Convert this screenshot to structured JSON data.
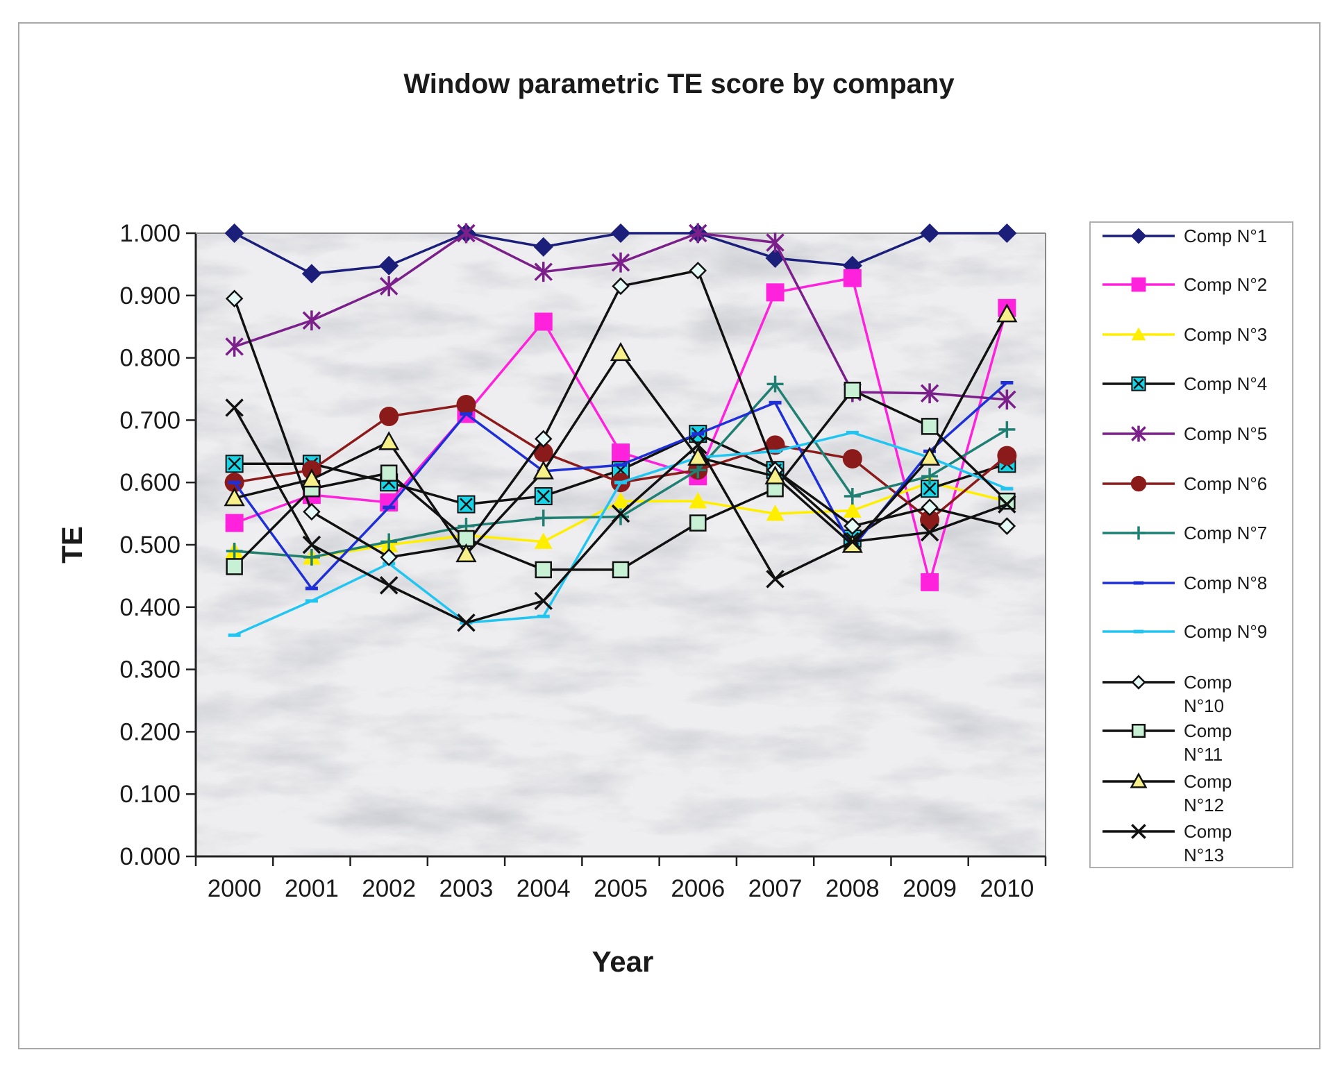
{
  "chart_data": {
    "type": "line",
    "title": "Window parametric TE score by company",
    "xlabel": "Year",
    "ylabel": "TE",
    "x": [
      "2000",
      "2001",
      "2002",
      "2003",
      "2004",
      "2005",
      "2006",
      "2007",
      "2008",
      "2009",
      "2010"
    ],
    "ylim": [
      0,
      1
    ],
    "yticks": [
      "0.000",
      "0.100",
      "0.200",
      "0.300",
      "0.400",
      "0.500",
      "0.600",
      "0.700",
      "0.800",
      "0.900",
      "1.000"
    ],
    "grid": false,
    "legend": "right",
    "series": [
      {
        "name": "Comp N°1",
        "color": "#1b1f7a",
        "marker": "diamond-filled",
        "values": [
          1.0,
          0.935,
          0.948,
          1.0,
          0.978,
          1.0,
          1.0,
          0.96,
          0.948,
          1.0,
          1.0
        ]
      },
      {
        "name": "Comp N°2",
        "color": "#ff22dd",
        "marker": "square-filled",
        "values": [
          0.535,
          0.58,
          0.568,
          0.71,
          0.858,
          0.648,
          0.61,
          0.905,
          0.928,
          0.44,
          0.88
        ]
      },
      {
        "name": "Comp N°3",
        "color": "#ffee00",
        "marker": "triangle-filled",
        "values": [
          0.49,
          0.48,
          0.5,
          0.515,
          0.505,
          0.57,
          0.57,
          0.55,
          0.555,
          0.6,
          0.57
        ]
      },
      {
        "name": "Comp N°4",
        "color": "#111111",
        "marker": "box-x-cyan",
        "values": [
          0.63,
          0.63,
          0.6,
          0.565,
          0.578,
          0.62,
          0.678,
          0.62,
          0.51,
          0.59,
          0.63
        ]
      },
      {
        "name": "Comp N°5",
        "color": "#7b1f8a",
        "marker": "star",
        "values": [
          0.818,
          0.86,
          0.915,
          1.0,
          0.938,
          0.953,
          1.0,
          0.985,
          0.745,
          0.743,
          0.733
        ]
      },
      {
        "name": "Comp N°6",
        "color": "#8b1a1a",
        "marker": "circle-filled",
        "values": [
          0.6,
          0.62,
          0.706,
          0.725,
          0.648,
          0.6,
          0.62,
          0.66,
          0.638,
          0.54,
          0.643
        ]
      },
      {
        "name": "Comp N°7",
        "color": "#1f7f72",
        "marker": "plus",
        "values": [
          0.49,
          0.48,
          0.505,
          0.53,
          0.543,
          0.545,
          0.62,
          0.758,
          0.578,
          0.61,
          0.685
        ]
      },
      {
        "name": "Comp N°8",
        "color": "#1f2fd6",
        "marker": "dash",
        "values": [
          0.6,
          0.43,
          0.56,
          0.71,
          0.618,
          0.628,
          0.678,
          0.728,
          0.495,
          0.65,
          0.76
        ]
      },
      {
        "name": "Comp N°9",
        "color": "#22c5f0",
        "marker": "dash",
        "values": [
          0.355,
          0.41,
          0.47,
          0.375,
          0.385,
          0.6,
          0.64,
          0.65,
          0.68,
          0.64,
          0.59
        ]
      },
      {
        "name": "Comp N°10",
        "color": "#111111",
        "marker": "diamond-open",
        "values": [
          0.895,
          0.553,
          0.48,
          0.5,
          0.67,
          0.915,
          0.94,
          0.62,
          0.53,
          0.56,
          0.53
        ]
      },
      {
        "name": "Comp N°11",
        "color": "#111111",
        "marker": "square-open",
        "values": [
          0.465,
          0.59,
          0.615,
          0.51,
          0.46,
          0.46,
          0.535,
          0.59,
          0.748,
          0.69,
          0.57
        ]
      },
      {
        "name": "Comp N°12",
        "color": "#111111",
        "marker": "triangle-open",
        "values": [
          0.575,
          0.605,
          0.665,
          0.485,
          0.618,
          0.808,
          0.64,
          0.61,
          0.5,
          0.64,
          0.87
        ]
      },
      {
        "name": "Comp N°13",
        "color": "#111111",
        "marker": "x",
        "values": [
          0.72,
          0.5,
          0.435,
          0.375,
          0.41,
          0.55,
          0.66,
          0.445,
          0.505,
          0.52,
          0.565
        ]
      }
    ]
  }
}
